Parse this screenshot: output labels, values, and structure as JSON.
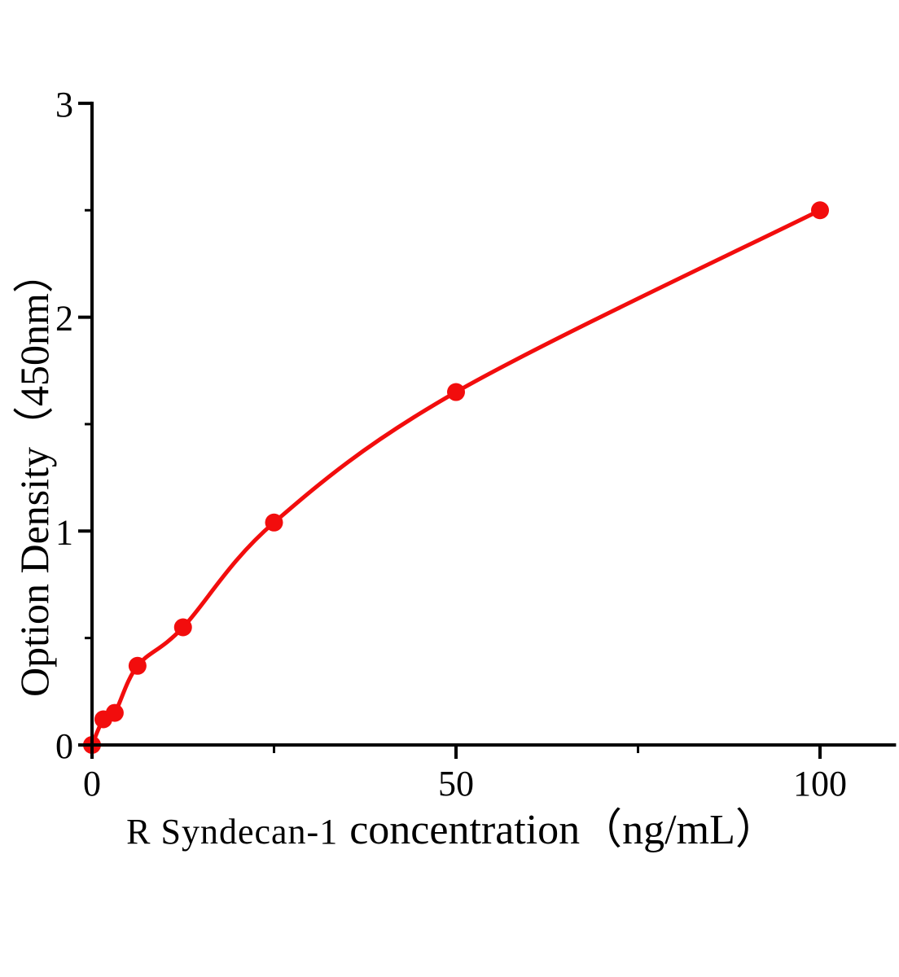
{
  "background": "#ffffff",
  "colors": {
    "curve": "#f20d0d",
    "marker": "#f20d0d",
    "axis": "#000000",
    "text": "#000000"
  },
  "chart_data": {
    "type": "scatter",
    "subtype": "standard-curve-with-fitted-line",
    "title": "",
    "xlabel_prefix": "R Syndecan-1",
    "xlabel_main": "concentration（ng/mL）",
    "ylabel": "Option Density（450nm）",
    "xlim": [
      0,
      110
    ],
    "ylim": [
      0,
      3
    ],
    "xticks": [
      0,
      50,
      100
    ],
    "xticks_minor": [
      25,
      75
    ],
    "yticks": [
      0,
      1,
      2,
      3
    ],
    "yticks_minor": [
      0.5,
      1.5,
      2.5
    ],
    "grid": false,
    "legend": false,
    "marker": "filled-circle",
    "line_color": "#f20d0d",
    "marker_color": "#f20d0d",
    "points": [
      {
        "x": 0,
        "y": 0
      },
      {
        "x": 1.56,
        "y": 0.12
      },
      {
        "x": 3.12,
        "y": 0.15
      },
      {
        "x": 6.25,
        "y": 0.37
      },
      {
        "x": 12.5,
        "y": 0.55
      },
      {
        "x": 25,
        "y": 1.04
      },
      {
        "x": 50,
        "y": 1.65
      },
      {
        "x": 100,
        "y": 2.5
      }
    ]
  }
}
